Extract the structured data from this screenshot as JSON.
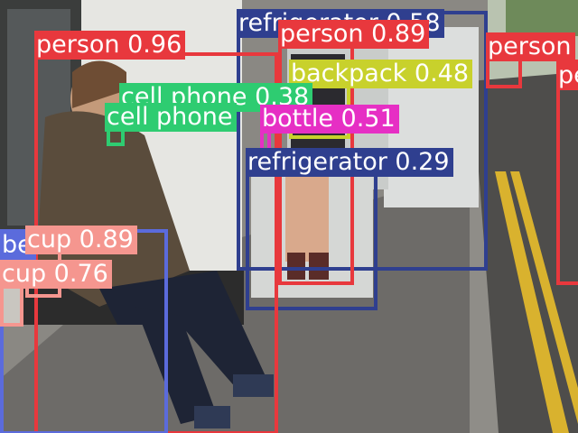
{
  "detections": [
    {
      "id": "refrigerator-1",
      "label": "refrigerator 0.58",
      "color": "#2f3f8f",
      "text_color": "#ffffff"
    },
    {
      "id": "person-1",
      "label": "person 0.96",
      "color": "#e8383d",
      "text_color": "#ffffff"
    },
    {
      "id": "person-2",
      "label": "person 0.89",
      "color": "#e8383d",
      "text_color": "#ffffff"
    },
    {
      "id": "person-3",
      "label": "person",
      "color": "#e8383d",
      "text_color": "#ffffff"
    },
    {
      "id": "person-4",
      "label": "pe",
      "color": "#e8383d",
      "text_color": "#ffffff"
    },
    {
      "id": "backpack-1",
      "label": "backpack 0.48",
      "color": "#c8d12c",
      "text_color": "#ffffff"
    },
    {
      "id": "cell-phone-1",
      "label": "cell phone 0.38",
      "color": "#2ecc71",
      "text_color": "#ffffff"
    },
    {
      "id": "cell-phone-2",
      "label": "cell phone",
      "color": "#2ecc71",
      "text_color": "#ffffff"
    },
    {
      "id": "bottle-1",
      "label": "bottle 0.51",
      "color": "#e62fc4",
      "text_color": "#ffffff"
    },
    {
      "id": "refrigerator-2",
      "label": "refrigerator 0.29",
      "color": "#2f3f8f",
      "text_color": "#ffffff"
    },
    {
      "id": "bench-1",
      "label": "be",
      "color": "#5b6bdc",
      "text_color": "#ffffff"
    },
    {
      "id": "cup-1",
      "label": "cup 0.89",
      "color": "#f5968f",
      "text_color": "#ffffff"
    },
    {
      "id": "cup-2",
      "label": "cup 0.76",
      "color": "#f5968f",
      "text_color": "#ffffff"
    }
  ]
}
